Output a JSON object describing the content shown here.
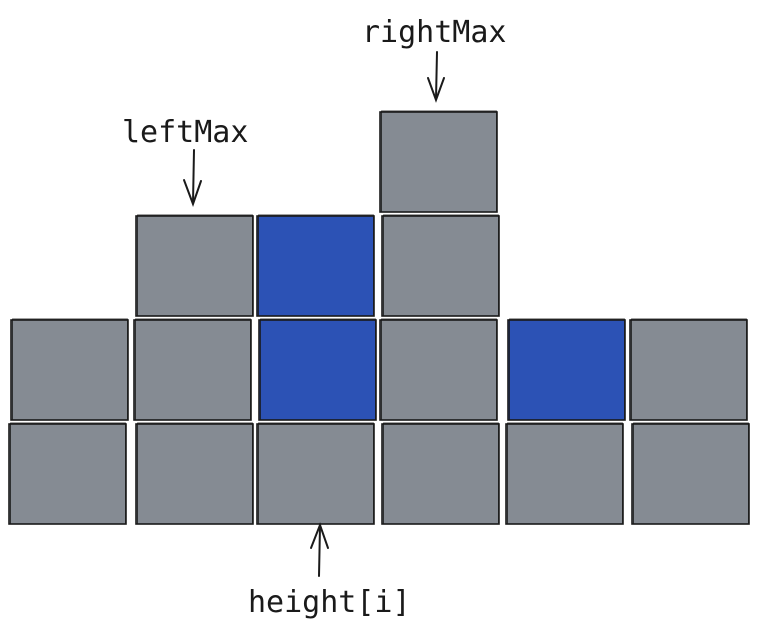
{
  "labels": {
    "left_max": "leftMax",
    "right_max": "rightMax",
    "height_i": "height[i]"
  },
  "colors": {
    "bar_block": "#858b93",
    "water_block": "#2c52b5",
    "stroke": "#1a1a1a",
    "background": "#ffffff"
  },
  "columns": [
    {
      "bar_height": 2,
      "water_height": 0
    },
    {
      "bar_height": 3,
      "water_height": 0
    },
    {
      "bar_height": 1,
      "water_height": 2
    },
    {
      "bar_height": 4,
      "water_height": 0
    },
    {
      "bar_height": 1,
      "water_height": 1
    },
    {
      "bar_height": 2,
      "water_height": 0
    }
  ]
}
